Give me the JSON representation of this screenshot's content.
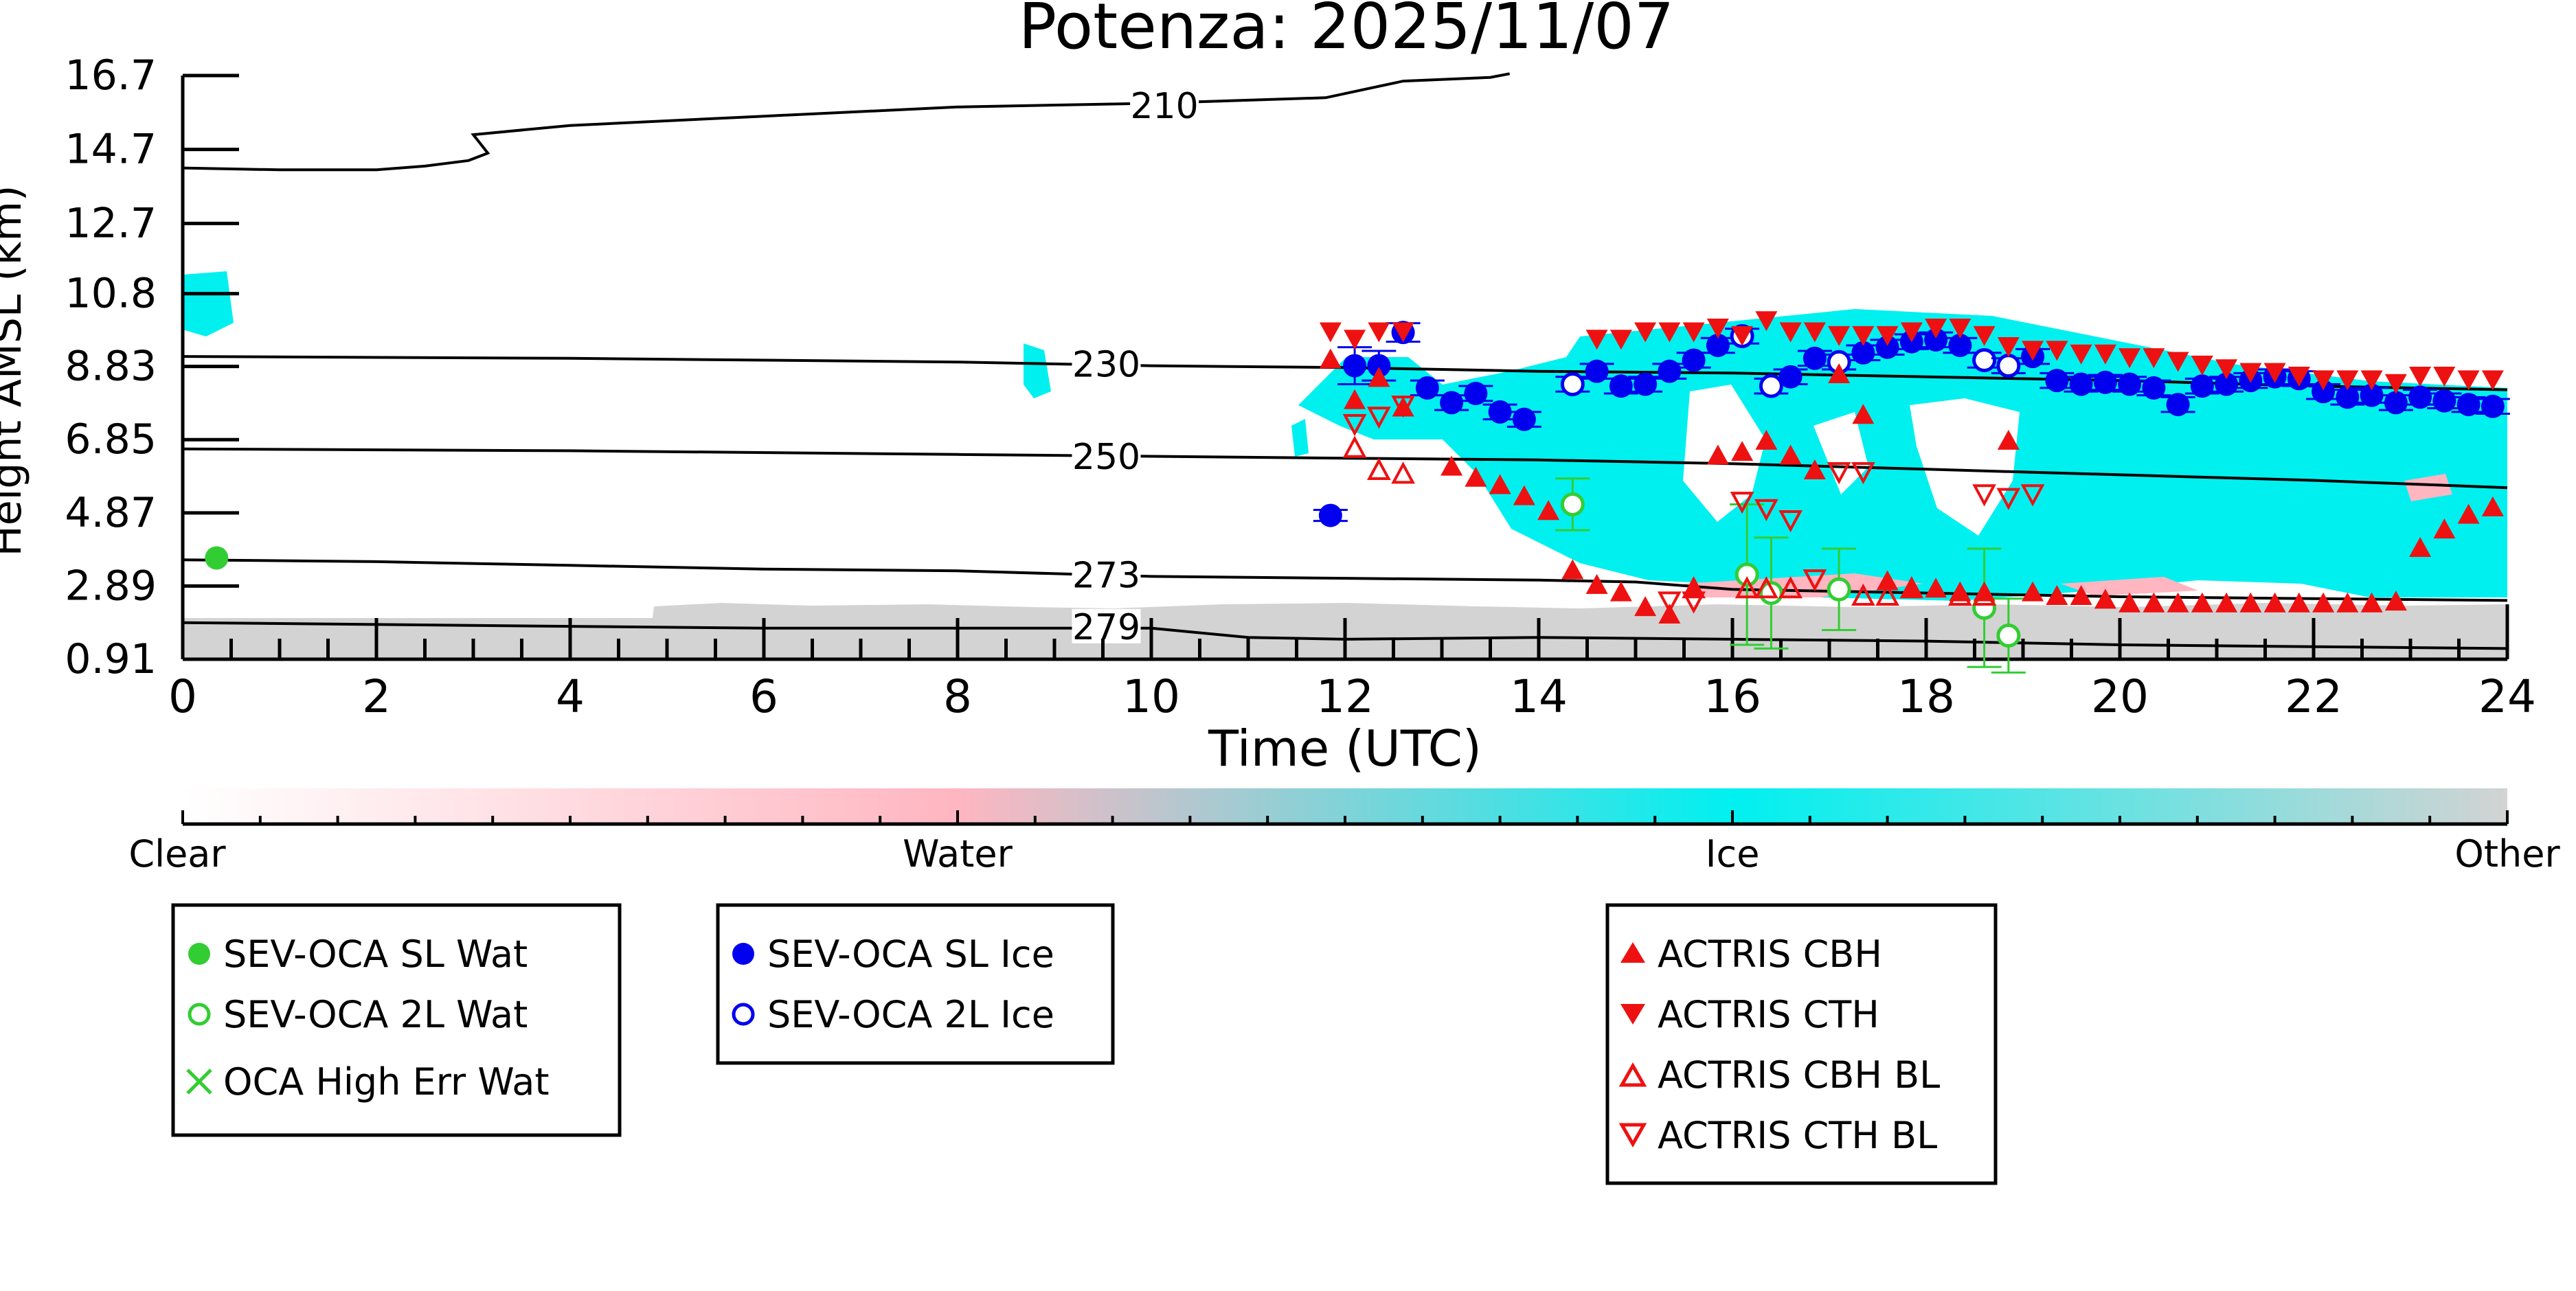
{
  "chart_data": {
    "type": "scatter",
    "title": "Potenza: 2025/11/07",
    "xlabel": "Time (UTC)",
    "ylabel": "Height AMSL (km)",
    "xlim": [
      0,
      24
    ],
    "ylim": [
      0.91,
      16.7
    ],
    "xticks": [
      "0",
      "2",
      "4",
      "6",
      "8",
      "10",
      "12",
      "14",
      "16",
      "18",
      "20",
      "22",
      "24"
    ],
    "yticks": [
      "0.91",
      "2.89",
      "4.87",
      "6.85",
      "8.83",
      "10.8",
      "12.7",
      "14.7",
      "16.7"
    ],
    "background": "cloud phase curtain (Clear / Water / Ice / Other)",
    "colorbar": {
      "labels": [
        "Clear",
        "Water",
        "Ice",
        "Other"
      ],
      "colors": [
        "#ffffff",
        "#ffb6c1",
        "#00f0f0",
        "#d3d3d3"
      ]
    },
    "contours": [
      {
        "label": "210",
        "x": [
          0,
          1,
          2,
          2.5,
          2.95,
          3.15,
          3,
          4,
          6,
          8,
          10,
          11.8,
          12.6,
          13.5,
          13.7
        ],
        "y": [
          14.2,
          14.15,
          14.15,
          14.25,
          14.4,
          14.6,
          15.1,
          15.35,
          15.6,
          15.85,
          15.95,
          16.1,
          16.55,
          16.65,
          16.75
        ],
        "label_x": 10.1,
        "label_y": 15.85
      },
      {
        "label": "230",
        "x": [
          0,
          4,
          8,
          10,
          12,
          14,
          16,
          18,
          20,
          22,
          24
        ],
        "y": [
          9.1,
          9.05,
          8.95,
          8.85,
          8.8,
          8.7,
          8.65,
          8.55,
          8.45,
          8.3,
          8.2
        ],
        "label_x": 9.5,
        "label_y": 8.85
      },
      {
        "label": "250",
        "x": [
          0,
          4,
          8,
          10,
          12,
          14,
          16,
          18,
          20,
          22,
          24
        ],
        "y": [
          6.6,
          6.55,
          6.45,
          6.4,
          6.35,
          6.3,
          6.2,
          6.05,
          5.9,
          5.75,
          5.55
        ],
        "label_x": 9.5,
        "label_y": 6.35
      },
      {
        "label": "273",
        "x": [
          0,
          2,
          4,
          6,
          8,
          10,
          12,
          14,
          15,
          16,
          18,
          20,
          22,
          24
        ],
        "y": [
          3.6,
          3.55,
          3.45,
          3.35,
          3.3,
          3.15,
          3.1,
          3.05,
          3.0,
          2.8,
          2.7,
          2.6,
          2.55,
          2.5
        ],
        "label_x": 9.5,
        "label_y": 3.15
      },
      {
        "label": "279",
        "x": [
          0,
          2,
          4,
          6,
          8,
          10,
          11,
          12,
          14,
          16,
          18,
          20,
          22,
          24
        ],
        "y": [
          1.9,
          1.85,
          1.8,
          1.75,
          1.75,
          1.75,
          1.5,
          1.45,
          1.5,
          1.45,
          1.4,
          1.3,
          1.25,
          1.2
        ],
        "label_x": 9.5,
        "label_y": 1.75
      }
    ],
    "series": [
      {
        "name": "SEV-OCA SL Wat",
        "marker": "filled-circle",
        "color": "#32cd32",
        "x": [
          0.35
        ],
        "y": [
          3.65
        ],
        "err": [
          0.0
        ]
      },
      {
        "name": "SEV-OCA 2L Wat",
        "marker": "open-circle",
        "color": "#32cd32",
        "x": [
          14.35,
          16.15,
          16.4,
          17.1,
          18.6,
          18.85
        ],
        "y": [
          5.1,
          3.2,
          2.7,
          2.8,
          2.3,
          1.55
        ],
        "err": [
          0.7,
          1.9,
          1.5,
          1.1,
          1.6,
          1.0
        ]
      },
      {
        "name": "OCA High Err Wat",
        "marker": "x",
        "color": "#32cd32",
        "x": [],
        "y": []
      },
      {
        "name": "SEV-OCA SL Ice",
        "marker": "filled-circle",
        "color": "#0000ee",
        "x": [
          11.85,
          12.1,
          12.35,
          12.6,
          12.85,
          13.1,
          13.35,
          13.6,
          13.85,
          14.6,
          14.85,
          15.1,
          15.35,
          15.6,
          15.85,
          16.6,
          16.85,
          17.35,
          17.6,
          17.85,
          18.1,
          18.35,
          19.1,
          19.35,
          19.6,
          19.85,
          20.1,
          20.35,
          20.6,
          20.85,
          21.1,
          21.35,
          21.6,
          21.85,
          22.1,
          22.35,
          22.6,
          22.85,
          23.1,
          23.35,
          23.6,
          23.85
        ],
        "y": [
          4.8,
          8.85,
          8.85,
          9.75,
          8.25,
          7.85,
          8.1,
          7.6,
          7.4,
          8.7,
          8.3,
          8.35,
          8.7,
          9.0,
          9.4,
          8.55,
          9.05,
          9.2,
          9.35,
          9.5,
          9.55,
          9.4,
          9.1,
          8.45,
          8.35,
          8.4,
          8.35,
          8.25,
          7.8,
          8.3,
          8.35,
          8.45,
          8.55,
          8.5,
          8.15,
          8.0,
          8.05,
          7.85,
          8.0,
          7.9,
          7.8,
          7.75
        ],
        "err": [
          0.15,
          0.5,
          0.4,
          0.25,
          0.2,
          0.2,
          0.2,
          0.2,
          0.2,
          0.2,
          0.2,
          0.2,
          0.2,
          0.2,
          0.2,
          0.2,
          0.2,
          0.2,
          0.2,
          0.2,
          0.2,
          0.2,
          0.2,
          0.2,
          0.2,
          0.2,
          0.2,
          0.2,
          0.2,
          0.2,
          0.2,
          0.2,
          0.2,
          0.2,
          0.2,
          0.2,
          0.2,
          0.2,
          0.2,
          0.2,
          0.2,
          0.2
        ]
      },
      {
        "name": "SEV-OCA 2L Ice",
        "marker": "open-circle",
        "color": "#0000ee",
        "x": [
          14.35,
          16.1,
          16.4,
          17.1,
          18.6,
          18.85
        ],
        "y": [
          8.35,
          9.65,
          8.3,
          8.95,
          9.0,
          8.85
        ],
        "err": [
          0.2,
          0.2,
          0.2,
          0.2,
          0.2,
          0.2
        ]
      },
      {
        "name": "ACTRIS CBH",
        "marker": "triangle-up",
        "color": "#ee1111",
        "x": [
          11.85,
          12.1,
          12.35,
          12.6,
          13.1,
          13.35,
          13.6,
          13.85,
          14.1,
          14.35,
          14.6,
          14.85,
          15.1,
          15.35,
          15.6,
          15.85,
          16.1,
          16.35,
          16.6,
          16.85,
          17.1,
          17.35,
          17.6,
          17.85,
          18.1,
          18.35,
          18.6,
          18.85,
          19.1,
          19.35,
          19.6,
          19.85,
          20.1,
          20.35,
          20.6,
          20.85,
          21.1,
          21.35,
          21.6,
          21.85,
          22.1,
          22.35,
          22.6,
          22.85,
          23.1,
          23.35,
          23.6,
          23.85
        ],
        "y": [
          9.0,
          7.9,
          8.5,
          7.7,
          6.1,
          5.8,
          5.6,
          5.3,
          4.9,
          3.3,
          2.9,
          2.7,
          2.3,
          2.1,
          2.8,
          6.4,
          6.5,
          6.8,
          6.4,
          6.0,
          8.6,
          7.5,
          3.0,
          2.8,
          2.8,
          2.7,
          2.7,
          6.8,
          2.7,
          2.6,
          2.6,
          2.5,
          2.4,
          2.4,
          2.4,
          2.4,
          2.4,
          2.4,
          2.4,
          2.4,
          2.4,
          2.4,
          2.4,
          2.45,
          3.9,
          4.4,
          4.8,
          5.0
        ]
      },
      {
        "name": "ACTRIS CTH",
        "marker": "triangle-down",
        "color": "#ee1111",
        "x": [
          11.85,
          12.1,
          12.35,
          12.6,
          14.6,
          14.85,
          15.1,
          15.35,
          15.6,
          15.85,
          16.1,
          16.35,
          16.6,
          16.85,
          17.1,
          17.35,
          17.6,
          17.85,
          18.1,
          18.35,
          18.6,
          18.85,
          19.1,
          19.35,
          19.6,
          19.85,
          20.1,
          20.35,
          20.6,
          20.85,
          21.1,
          21.35,
          21.6,
          21.85,
          22.1,
          22.35,
          22.6,
          22.85,
          23.1,
          23.35,
          23.6,
          23.85
        ],
        "y": [
          9.8,
          9.6,
          9.8,
          9.8,
          9.6,
          9.6,
          9.8,
          9.8,
          9.8,
          9.9,
          9.7,
          10.1,
          9.8,
          9.8,
          9.7,
          9.7,
          9.7,
          9.8,
          9.9,
          9.9,
          9.7,
          9.4,
          9.3,
          9.3,
          9.2,
          9.2,
          9.1,
          9.1,
          9.0,
          8.9,
          8.8,
          8.7,
          8.7,
          8.6,
          8.5,
          8.5,
          8.5,
          8.4,
          8.6,
          8.6,
          8.5,
          8.5
        ]
      },
      {
        "name": "ACTRIS CBH BL",
        "marker": "open-triangle-up",
        "color": "#ee1111",
        "x": [
          12.1,
          12.35,
          12.6,
          15.6,
          16.15,
          16.35,
          16.6,
          17.35,
          17.6,
          17.85,
          18.35,
          18.6
        ],
        "y": [
          6.6,
          6.0,
          5.9,
          2.8,
          2.8,
          2.8,
          2.8,
          2.6,
          2.6,
          2.8,
          2.6,
          2.6
        ]
      },
      {
        "name": "ACTRIS CTH BL",
        "marker": "open-triangle-down",
        "color": "#ee1111",
        "x": [
          12.1,
          12.35,
          12.6,
          15.35,
          15.6,
          16.1,
          16.35,
          16.6,
          16.85,
          17.1,
          17.35,
          18.6,
          18.85,
          19.1
        ],
        "y": [
          7.3,
          7.5,
          7.8,
          2.5,
          2.5,
          5.2,
          5.0,
          4.7,
          3.1,
          6.0,
          6.0,
          5.4,
          5.3,
          5.4
        ]
      }
    ]
  }
}
